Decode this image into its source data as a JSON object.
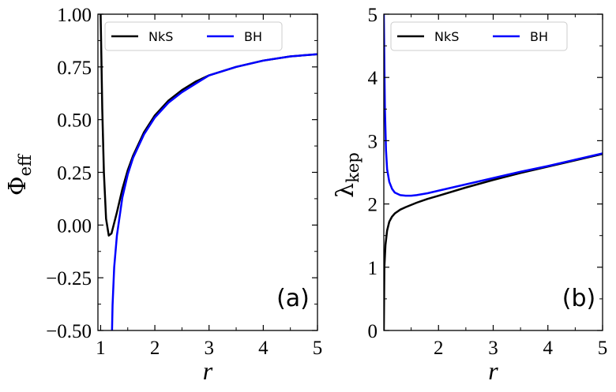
{
  "chart_data": [
    {
      "type": "line",
      "panel_label": "(a)",
      "xlabel": "r",
      "ylabel": "Φ",
      "ylabel_sub": "eff",
      "xlim": [
        0.95,
        5
      ],
      "ylim": [
        -0.5,
        1.0
      ],
      "xticks": [
        1,
        2,
        3,
        4,
        5
      ],
      "xtick_labels": [
        "1",
        "2",
        "3",
        "4",
        "5"
      ],
      "yticks": [
        -0.5,
        -0.25,
        0.0,
        0.25,
        0.5,
        0.75,
        1.0
      ],
      "ytick_labels": [
        "−0.50",
        "−0.25",
        "0.00",
        "0.25",
        "0.50",
        "0.75",
        "1.00"
      ],
      "legend_placement": "top-left",
      "grid": false,
      "series": [
        {
          "name": "NkS",
          "color": "#000000",
          "x": [
            1.0,
            1.03,
            1.06,
            1.1,
            1.15,
            1.2,
            1.3,
            1.4,
            1.5,
            1.6,
            1.8,
            2.0,
            2.25,
            2.5,
            2.75,
            3.0,
            3.5,
            4.0,
            4.5,
            5.0
          ],
          "y": [
            1.0,
            0.55,
            0.25,
            0.03,
            -0.05,
            -0.04,
            0.06,
            0.17,
            0.26,
            0.33,
            0.44,
            0.52,
            0.59,
            0.64,
            0.68,
            0.71,
            0.75,
            0.78,
            0.8,
            0.81
          ]
        },
        {
          "name": "BH",
          "color": "#0000ff",
          "x": [
            1.21,
            1.22,
            1.25,
            1.3,
            1.4,
            1.5,
            1.6,
            1.8,
            2.0,
            2.25,
            2.5,
            2.75,
            3.0,
            3.5,
            4.0,
            4.5,
            5.0
          ],
          "y": [
            -0.5,
            -0.38,
            -0.2,
            -0.05,
            0.13,
            0.24,
            0.32,
            0.43,
            0.51,
            0.58,
            0.63,
            0.67,
            0.71,
            0.75,
            0.78,
            0.8,
            0.81
          ]
        }
      ]
    },
    {
      "type": "line",
      "panel_label": "(b)",
      "xlabel": "r",
      "ylabel": "λ",
      "ylabel_sub": "kep",
      "xlim": [
        1.0,
        5
      ],
      "ylim": [
        0,
        5
      ],
      "xticks": [
        2,
        3,
        4,
        5
      ],
      "xtick_labels": [
        "2",
        "3",
        "4",
        "5"
      ],
      "yticks": [
        0,
        1,
        2,
        3,
        4,
        5
      ],
      "ytick_labels": [
        "0",
        "1",
        "2",
        "3",
        "4",
        "5"
      ],
      "legend_placement": "top-left",
      "grid": false,
      "series": [
        {
          "name": "NkS",
          "color": "#000000",
          "x": [
            1.0,
            1.01,
            1.03,
            1.06,
            1.1,
            1.15,
            1.2,
            1.3,
            1.4,
            1.6,
            1.8,
            2.0,
            2.5,
            3.0,
            3.5,
            4.0,
            4.5,
            5.0
          ],
          "y": [
            0.0,
            1.0,
            1.35,
            1.58,
            1.72,
            1.8,
            1.85,
            1.91,
            1.95,
            2.02,
            2.08,
            2.13,
            2.26,
            2.38,
            2.49,
            2.59,
            2.69,
            2.79
          ]
        },
        {
          "name": "BH",
          "color": "#0000ff",
          "x": [
            1.0,
            1.005,
            1.01,
            1.02,
            1.04,
            1.06,
            1.1,
            1.15,
            1.2,
            1.3,
            1.4,
            1.5,
            1.6,
            1.8,
            2.0,
            2.5,
            3.0,
            3.5,
            4.0,
            4.5,
            5.0
          ],
          "y": [
            5.0,
            4.6,
            4.2,
            3.5,
            2.85,
            2.55,
            2.35,
            2.24,
            2.18,
            2.14,
            2.13,
            2.13,
            2.14,
            2.17,
            2.21,
            2.31,
            2.41,
            2.51,
            2.6,
            2.7,
            2.8
          ]
        }
      ]
    }
  ]
}
